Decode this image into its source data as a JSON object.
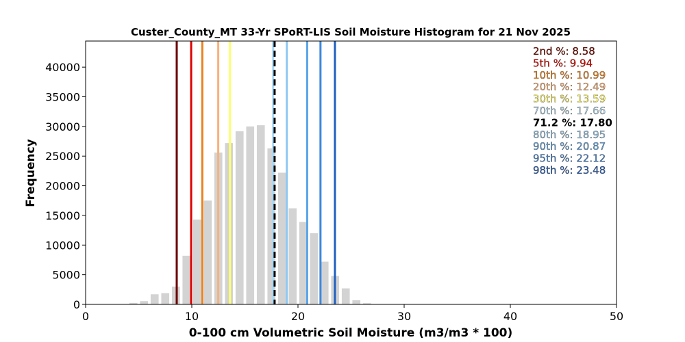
{
  "chart_data": {
    "type": "bar",
    "title": "Custer_County_MT 33-Yr SPoRT-LIS Soil Moisture Histogram for 21 Nov 2025",
    "xlabel": "0-100 cm Volumetric Soil Moisture (m3/m3 * 100)",
    "ylabel": "Frequency",
    "xlim": [
      0,
      50
    ],
    "ylim": [
      0,
      44400
    ],
    "xticks": [
      "0",
      "10",
      "20",
      "30",
      "40",
      "50"
    ],
    "yticks": [
      "0",
      "5000",
      "10000",
      "15000",
      "20000",
      "25000",
      "30000",
      "35000",
      "40000"
    ],
    "bar_color": "#d3d3d3",
    "bars": [
      {
        "x": 4.5,
        "value": 250
      },
      {
        "x": 5.5,
        "value": 550
      },
      {
        "x": 6.5,
        "value": 1700
      },
      {
        "x": 7.5,
        "value": 1900
      },
      {
        "x": 8.5,
        "value": 3000
      },
      {
        "x": 9.5,
        "value": 8200
      },
      {
        "x": 10.5,
        "value": 14300
      },
      {
        "x": 11.5,
        "value": 17500
      },
      {
        "x": 12.5,
        "value": 25600
      },
      {
        "x": 13.5,
        "value": 27200
      },
      {
        "x": 14.5,
        "value": 29200
      },
      {
        "x": 15.5,
        "value": 30000
      },
      {
        "x": 16.5,
        "value": 30200
      },
      {
        "x": 17.5,
        "value": 26300
      },
      {
        "x": 18.5,
        "value": 22200
      },
      {
        "x": 19.5,
        "value": 16200
      },
      {
        "x": 20.5,
        "value": 13900
      },
      {
        "x": 21.5,
        "value": 12000
      },
      {
        "x": 22.5,
        "value": 7200
      },
      {
        "x": 23.5,
        "value": 4800
      },
      {
        "x": 24.5,
        "value": 2700
      },
      {
        "x": 25.5,
        "value": 700
      },
      {
        "x": 26.5,
        "value": 200
      }
    ],
    "percentile_lines": [
      {
        "label": "2nd %: 8.58",
        "x": 8.58,
        "color": "#6b0000"
      },
      {
        "label": "5th %: 9.94",
        "x": 9.94,
        "color": "#e00000"
      },
      {
        "label": "10th %: 10.99",
        "x": 10.99,
        "color": "#e8821c"
      },
      {
        "label": "20th %: 12.49",
        "x": 12.49,
        "color": "#f7b27a"
      },
      {
        "label": "30th %: 13.59",
        "x": 13.59,
        "color": "#ffff66"
      },
      {
        "label": "70th %: 17.66",
        "x": 17.66,
        "color": "#a9d8f5"
      },
      {
        "label": "80th %: 18.95",
        "x": 18.95,
        "color": "#8ec8f2"
      },
      {
        "label": "90th %: 20.87",
        "x": 20.87,
        "color": "#5aa5e8"
      },
      {
        "label": "95th %: 22.12",
        "x": 22.12,
        "color": "#3d87dc"
      },
      {
        "label": "98th %: 23.48",
        "x": 23.48,
        "color": "#1f5fbf"
      }
    ],
    "current_value": {
      "label": "71.2 %: 17.80",
      "x": 17.8,
      "color": "#000000",
      "style": "dashed"
    },
    "legend_position": "top-right"
  }
}
